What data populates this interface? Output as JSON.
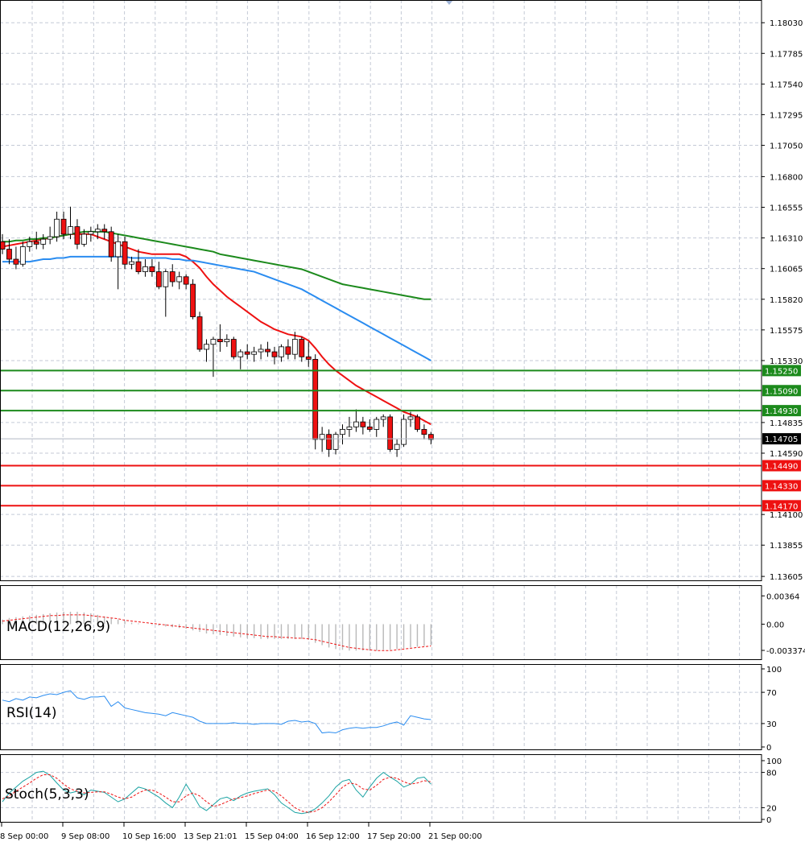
{
  "chart_data": [
    {
      "type": "candlestick",
      "panel": "price",
      "symbol_label": "",
      "y_ticks": [
        1.1803,
        1.17785,
        1.1754,
        1.17295,
        1.1705,
        1.168,
        1.16555,
        1.1631,
        1.16065,
        1.1582,
        1.15575,
        1.1533,
        1.14835,
        1.1459,
        1.141,
        1.13855,
        1.13605
      ],
      "y_tick_labels": [
        "1.18030",
        "1.17785",
        "1.17540",
        "1.17295",
        "1.17050",
        "1.16800",
        "1.16555",
        "1.16310",
        "1.16065",
        "1.15820",
        "1.15575",
        "1.15330",
        "1.14835",
        "1.14590",
        "1.14100",
        "1.13855",
        "1.13605"
      ],
      "ylim": [
        1.1358,
        1.1816
      ],
      "current_price": 1.14705,
      "current_price_label": "1.14705",
      "resistance_levels": [
        {
          "value": 1.1525,
          "label": "1.15250"
        },
        {
          "value": 1.1509,
          "label": "1.15090"
        },
        {
          "value": 1.1493,
          "label": "1.14930"
        }
      ],
      "support_levels": [
        {
          "value": 1.1449,
          "label": "1.14490"
        },
        {
          "value": 1.1433,
          "label": "1.14330"
        },
        {
          "value": 1.1417,
          "label": "1.14170"
        }
      ],
      "candles": [
        {
          "o": 1.1628,
          "h": 1.1634,
          "l": 1.1618,
          "c": 1.1622
        },
        {
          "o": 1.1622,
          "h": 1.163,
          "l": 1.161,
          "c": 1.1614
        },
        {
          "o": 1.1614,
          "h": 1.1624,
          "l": 1.1606,
          "c": 1.161
        },
        {
          "o": 1.161,
          "h": 1.1628,
          "l": 1.1608,
          "c": 1.1624
        },
        {
          "o": 1.1624,
          "h": 1.1632,
          "l": 1.162,
          "c": 1.1628
        },
        {
          "o": 1.1628,
          "h": 1.1636,
          "l": 1.1622,
          "c": 1.1626
        },
        {
          "o": 1.1626,
          "h": 1.1634,
          "l": 1.1622,
          "c": 1.163
        },
        {
          "o": 1.163,
          "h": 1.164,
          "l": 1.1626,
          "c": 1.1632
        },
        {
          "o": 1.1632,
          "h": 1.1652,
          "l": 1.1628,
          "c": 1.1646
        },
        {
          "o": 1.1646,
          "h": 1.1652,
          "l": 1.163,
          "c": 1.1634
        },
        {
          "o": 1.1634,
          "h": 1.1656,
          "l": 1.163,
          "c": 1.164
        },
        {
          "o": 1.164,
          "h": 1.1646,
          "l": 1.1622,
          "c": 1.1626
        },
        {
          "o": 1.1626,
          "h": 1.1638,
          "l": 1.1624,
          "c": 1.1634
        },
        {
          "o": 1.1634,
          "h": 1.164,
          "l": 1.1628,
          "c": 1.1636
        },
        {
          "o": 1.1636,
          "h": 1.1642,
          "l": 1.163,
          "c": 1.1638
        },
        {
          "o": 1.1638,
          "h": 1.1642,
          "l": 1.163,
          "c": 1.1636
        },
        {
          "o": 1.1636,
          "h": 1.164,
          "l": 1.1612,
          "c": 1.1616
        },
        {
          "o": 1.1616,
          "h": 1.1634,
          "l": 1.159,
          "c": 1.1628
        },
        {
          "o": 1.1628,
          "h": 1.1632,
          "l": 1.1606,
          "c": 1.161
        },
        {
          "o": 1.161,
          "h": 1.1616,
          "l": 1.1606,
          "c": 1.1612
        },
        {
          "o": 1.1612,
          "h": 1.1622,
          "l": 1.1602,
          "c": 1.1604
        },
        {
          "o": 1.1604,
          "h": 1.1614,
          "l": 1.16,
          "c": 1.1608
        },
        {
          "o": 1.1608,
          "h": 1.1614,
          "l": 1.16,
          "c": 1.1604
        },
        {
          "o": 1.1604,
          "h": 1.1612,
          "l": 1.159,
          "c": 1.1592
        },
        {
          "o": 1.1592,
          "h": 1.1606,
          "l": 1.1568,
          "c": 1.1604
        },
        {
          "o": 1.1604,
          "h": 1.161,
          "l": 1.1592,
          "c": 1.1596
        },
        {
          "o": 1.1596,
          "h": 1.1604,
          "l": 1.159,
          "c": 1.16
        },
        {
          "o": 1.16,
          "h": 1.1602,
          "l": 1.159,
          "c": 1.1594
        },
        {
          "o": 1.1594,
          "h": 1.1598,
          "l": 1.1566,
          "c": 1.1568
        },
        {
          "o": 1.1568,
          "h": 1.1572,
          "l": 1.154,
          "c": 1.1542
        },
        {
          "o": 1.1542,
          "h": 1.155,
          "l": 1.1532,
          "c": 1.1546
        },
        {
          "o": 1.1546,
          "h": 1.1552,
          "l": 1.152,
          "c": 1.155
        },
        {
          "o": 1.155,
          "h": 1.1562,
          "l": 1.154,
          "c": 1.1548
        },
        {
          "o": 1.1548,
          "h": 1.1554,
          "l": 1.1544,
          "c": 1.155
        },
        {
          "o": 1.155,
          "h": 1.1552,
          "l": 1.1534,
          "c": 1.1536
        },
        {
          "o": 1.1536,
          "h": 1.1542,
          "l": 1.1526,
          "c": 1.154
        },
        {
          "o": 1.154,
          "h": 1.1546,
          "l": 1.1534,
          "c": 1.1538
        },
        {
          "o": 1.1538,
          "h": 1.1544,
          "l": 1.1532,
          "c": 1.154
        },
        {
          "o": 1.154,
          "h": 1.1546,
          "l": 1.1534,
          "c": 1.1542
        },
        {
          "o": 1.1542,
          "h": 1.1548,
          "l": 1.1536,
          "c": 1.154
        },
        {
          "o": 1.154,
          "h": 1.1544,
          "l": 1.153,
          "c": 1.1536
        },
        {
          "o": 1.1536,
          "h": 1.1546,
          "l": 1.1532,
          "c": 1.1544
        },
        {
          "o": 1.1544,
          "h": 1.155,
          "l": 1.1534,
          "c": 1.1538
        },
        {
          "o": 1.1538,
          "h": 1.1556,
          "l": 1.1534,
          "c": 1.155
        },
        {
          "o": 1.155,
          "h": 1.1552,
          "l": 1.1532,
          "c": 1.1536
        },
        {
          "o": 1.1536,
          "h": 1.1548,
          "l": 1.1528,
          "c": 1.1534
        },
        {
          "o": 1.1534,
          "h": 1.1538,
          "l": 1.1462,
          "c": 1.147
        },
        {
          "o": 1.147,
          "h": 1.148,
          "l": 1.146,
          "c": 1.1474
        },
        {
          "o": 1.1474,
          "h": 1.1478,
          "l": 1.1456,
          "c": 1.1462
        },
        {
          "o": 1.1462,
          "h": 1.1476,
          "l": 1.1458,
          "c": 1.1474
        },
        {
          "o": 1.1474,
          "h": 1.1482,
          "l": 1.1466,
          "c": 1.1478
        },
        {
          "o": 1.1478,
          "h": 1.1488,
          "l": 1.1472,
          "c": 1.148
        },
        {
          "o": 1.148,
          "h": 1.1494,
          "l": 1.1476,
          "c": 1.1484
        },
        {
          "o": 1.1484,
          "h": 1.1488,
          "l": 1.1474,
          "c": 1.148
        },
        {
          "o": 1.148,
          "h": 1.1486,
          "l": 1.1476,
          "c": 1.1478
        },
        {
          "o": 1.1478,
          "h": 1.1488,
          "l": 1.1472,
          "c": 1.1486
        },
        {
          "o": 1.1486,
          "h": 1.149,
          "l": 1.148,
          "c": 1.1488
        },
        {
          "o": 1.1488,
          "h": 1.149,
          "l": 1.146,
          "c": 1.1462
        },
        {
          "o": 1.1462,
          "h": 1.147,
          "l": 1.1456,
          "c": 1.1466
        },
        {
          "o": 1.1466,
          "h": 1.149,
          "l": 1.1464,
          "c": 1.1486
        },
        {
          "o": 1.1486,
          "h": 1.1492,
          "l": 1.148,
          "c": 1.1488
        },
        {
          "o": 1.1488,
          "h": 1.149,
          "l": 1.1476,
          "c": 1.1478
        },
        {
          "o": 1.1478,
          "h": 1.1482,
          "l": 1.147,
          "c": 1.1474
        },
        {
          "o": 1.1474,
          "h": 1.1476,
          "l": 1.1466,
          "c": 1.147
        }
      ],
      "series": [
        {
          "kind": "ma",
          "color": "#ee1111",
          "values": [
            1.1624,
            1.1625,
            1.1626,
            1.1627,
            1.1628,
            1.1629,
            1.163,
            1.1631,
            1.1632,
            1.1633,
            1.1634,
            1.1634,
            1.1634,
            1.1634,
            1.1632,
            1.163,
            1.1628,
            1.1626,
            1.1624,
            1.1622,
            1.162,
            1.1619,
            1.1618,
            1.1618,
            1.1618,
            1.1618,
            1.1618,
            1.1616,
            1.1612,
            1.1607,
            1.16,
            1.1594,
            1.1589,
            1.1584,
            1.158,
            1.1576,
            1.1572,
            1.1568,
            1.1564,
            1.1561,
            1.1558,
            1.1556,
            1.1554,
            1.1553,
            1.1552,
            1.1549,
            1.1543,
            1.1536,
            1.153,
            1.1525,
            1.1521,
            1.1517,
            1.1513,
            1.151,
            1.1507,
            1.1504,
            1.1501,
            1.1498,
            1.1495,
            1.1492,
            1.149,
            1.1488,
            1.1485,
            1.1482
          ]
        },
        {
          "kind": "ma",
          "color": "#2a8cf0",
          "values": [
            1.1612,
            1.1612,
            1.1612,
            1.1612,
            1.1612,
            1.1613,
            1.1614,
            1.1614,
            1.1615,
            1.1615,
            1.1616,
            1.1616,
            1.1616,
            1.1616,
            1.1616,
            1.1616,
            1.1616,
            1.1616,
            1.1616,
            1.1615,
            1.1615,
            1.1615,
            1.1615,
            1.1615,
            1.1615,
            1.1614,
            1.1614,
            1.1613,
            1.1613,
            1.1612,
            1.1611,
            1.161,
            1.1609,
            1.1608,
            1.1607,
            1.1606,
            1.1605,
            1.1604,
            1.1602,
            1.16,
            1.1598,
            1.1596,
            1.1594,
            1.1592,
            1.159,
            1.1587,
            1.1584,
            1.1581,
            1.1578,
            1.1575,
            1.1572,
            1.1569,
            1.1566,
            1.1563,
            1.156,
            1.1557,
            1.1554,
            1.1551,
            1.1548,
            1.1545,
            1.1542,
            1.1539,
            1.1536,
            1.1533
          ]
        },
        {
          "kind": "ma",
          "color": "#1c8a1c",
          "values": [
            1.1628,
            1.1628,
            1.1629,
            1.1629,
            1.163,
            1.163,
            1.1631,
            1.1631,
            1.1632,
            1.1633,
            1.1634,
            1.1635,
            1.1636,
            1.1636,
            1.1636,
            1.1636,
            1.1635,
            1.1634,
            1.1633,
            1.1632,
            1.1631,
            1.163,
            1.1629,
            1.1628,
            1.1627,
            1.1626,
            1.1625,
            1.1624,
            1.1623,
            1.1622,
            1.1621,
            1.162,
            1.1618,
            1.1617,
            1.1616,
            1.1615,
            1.1614,
            1.1613,
            1.1612,
            1.1611,
            1.161,
            1.1609,
            1.1608,
            1.1607,
            1.1606,
            1.1604,
            1.1602,
            1.16,
            1.1598,
            1.1596,
            1.1594,
            1.1593,
            1.1592,
            1.1591,
            1.159,
            1.1589,
            1.1588,
            1.1587,
            1.1586,
            1.1585,
            1.1584,
            1.1583,
            1.1582,
            1.1582
          ]
        }
      ]
    },
    {
      "type": "line",
      "panel": "macd",
      "title": "MACD(12,26,9)",
      "y_tick_labels": [
        "0.00364",
        "0.00",
        "-0.003374"
      ],
      "y_ticks": [
        0.00364,
        0.0,
        -0.003374
      ],
      "ylim": [
        -0.0042,
        0.0046
      ],
      "histogram": [
        0.0006,
        0.0008,
        0.0009,
        0.001,
        0.0011,
        0.0012,
        0.0013,
        0.0014,
        0.0015,
        0.0016,
        0.0016,
        0.0016,
        0.0015,
        0.0014,
        0.0012,
        0.001,
        0.0008,
        0.0006,
        0.0004,
        0.0002,
        0.0001,
        0.0,
        -0.0001,
        -0.0002,
        -0.0003,
        -0.0004,
        -0.0005,
        -0.0006,
        -0.0008,
        -0.001,
        -0.0012,
        -0.0013,
        -0.0014,
        -0.0015,
        -0.0016,
        -0.0017,
        -0.0018,
        -0.0018,
        -0.0019,
        -0.0019,
        -0.0019,
        -0.0019,
        -0.0019,
        -0.0019,
        -0.0019,
        -0.002,
        -0.0024,
        -0.0027,
        -0.003,
        -0.0032,
        -0.0033,
        -0.0034,
        -0.0034,
        -0.0034,
        -0.0034,
        -0.0034,
        -0.0033,
        -0.0033,
        -0.0032,
        -0.0031,
        -0.003,
        -0.0029,
        -0.0028,
        -0.0027
      ],
      "signal": [
        0.0004,
        0.0005,
        0.0006,
        0.0007,
        0.0008,
        0.0009,
        0.001,
        0.0011,
        0.0011,
        0.0012,
        0.0012,
        0.0012,
        0.0012,
        0.0011,
        0.001,
        0.0009,
        0.0008,
        0.0007,
        0.0005,
        0.0004,
        0.0003,
        0.0002,
        0.0001,
        0.0,
        -0.0001,
        -0.0002,
        -0.0003,
        -0.0004,
        -0.0005,
        -0.0006,
        -0.0007,
        -0.0008,
        -0.0009,
        -0.001,
        -0.0011,
        -0.0012,
        -0.0013,
        -0.0014,
        -0.0015,
        -0.0016,
        -0.0016,
        -0.0017,
        -0.0017,
        -0.0018,
        -0.0018,
        -0.0019,
        -0.002,
        -0.0022,
        -0.0024,
        -0.0026,
        -0.0028,
        -0.003,
        -0.0031,
        -0.0032,
        -0.0033,
        -0.0034,
        -0.0034,
        -0.0034,
        -0.0033,
        -0.0032,
        -0.0031,
        -0.003,
        -0.0029,
        -0.0028
      ],
      "histogram_color": "#b8b8b8",
      "signal_color": "#ee1111"
    },
    {
      "type": "line",
      "panel": "rsi",
      "title": "RSI(14)",
      "y_tick_labels": [
        "100",
        "70",
        "30",
        "0"
      ],
      "y_ticks": [
        100,
        70,
        30,
        0
      ],
      "ylim": [
        0,
        100
      ],
      "color": "#2a8cf0",
      "values": [
        60,
        58,
        62,
        60,
        64,
        63,
        66,
        68,
        67,
        70,
        72,
        63,
        61,
        64,
        64,
        65,
        52,
        58,
        50,
        48,
        46,
        44,
        43,
        42,
        40,
        44,
        42,
        40,
        38,
        33,
        30,
        30,
        30,
        30,
        31,
        30,
        30,
        29,
        30,
        30,
        30,
        29,
        33,
        34,
        32,
        33,
        30,
        18,
        19,
        18,
        22,
        24,
        25,
        24,
        25,
        25,
        27,
        30,
        32,
        28,
        40,
        38,
        36,
        35
      ]
    },
    {
      "type": "line",
      "panel": "stochastic",
      "title": "Stoch(5,3,3)",
      "y_tick_labels": [
        "100",
        "80",
        "20",
        "0"
      ],
      "y_ticks": [
        100,
        80,
        20,
        0
      ],
      "ylim": [
        0,
        100
      ],
      "main_color": "#1aa3a3",
      "signal_color": "#ee1111",
      "main": [
        30,
        45,
        55,
        65,
        72,
        80,
        82,
        75,
        62,
        50,
        45,
        48,
        42,
        50,
        48,
        46,
        38,
        30,
        35,
        45,
        55,
        52,
        45,
        38,
        28,
        20,
        38,
        60,
        42,
        22,
        15,
        25,
        35,
        38,
        32,
        40,
        45,
        48,
        50,
        52,
        42,
        28,
        20,
        12,
        10,
        12,
        18,
        28,
        40,
        55,
        65,
        68,
        50,
        38,
        55,
        70,
        80,
        72,
        65,
        55,
        60,
        70,
        72,
        60
      ],
      "signal": [
        35,
        40,
        48,
        55,
        62,
        70,
        76,
        76,
        70,
        60,
        52,
        48,
        45,
        46,
        47,
        47,
        43,
        38,
        35,
        38,
        45,
        50,
        50,
        45,
        38,
        30,
        30,
        40,
        45,
        40,
        30,
        22,
        25,
        30,
        35,
        37,
        40,
        44,
        47,
        50,
        48,
        40,
        30,
        20,
        14,
        12,
        14,
        20,
        30,
        42,
        55,
        62,
        60,
        52,
        50,
        58,
        68,
        72,
        70,
        64,
        60,
        62,
        66,
        64
      ]
    }
  ],
  "x_axis": {
    "tick_labels": [
      "8 Sep 00:00",
      "9 Sep 08:00",
      "10 Sep 16:00",
      "13 Sep 21:01",
      "15 Sep 04:00",
      "16 Sep 12:00",
      "17 Sep 20:00",
      "21 Sep 00:00"
    ]
  },
  "colors": {
    "grid": "#c4cad6",
    "bull_candle": "#ffffff",
    "bear_candle": "#ee1111",
    "resistance": "#1c8a1c",
    "support": "#ee1111",
    "axis": "#000000"
  }
}
